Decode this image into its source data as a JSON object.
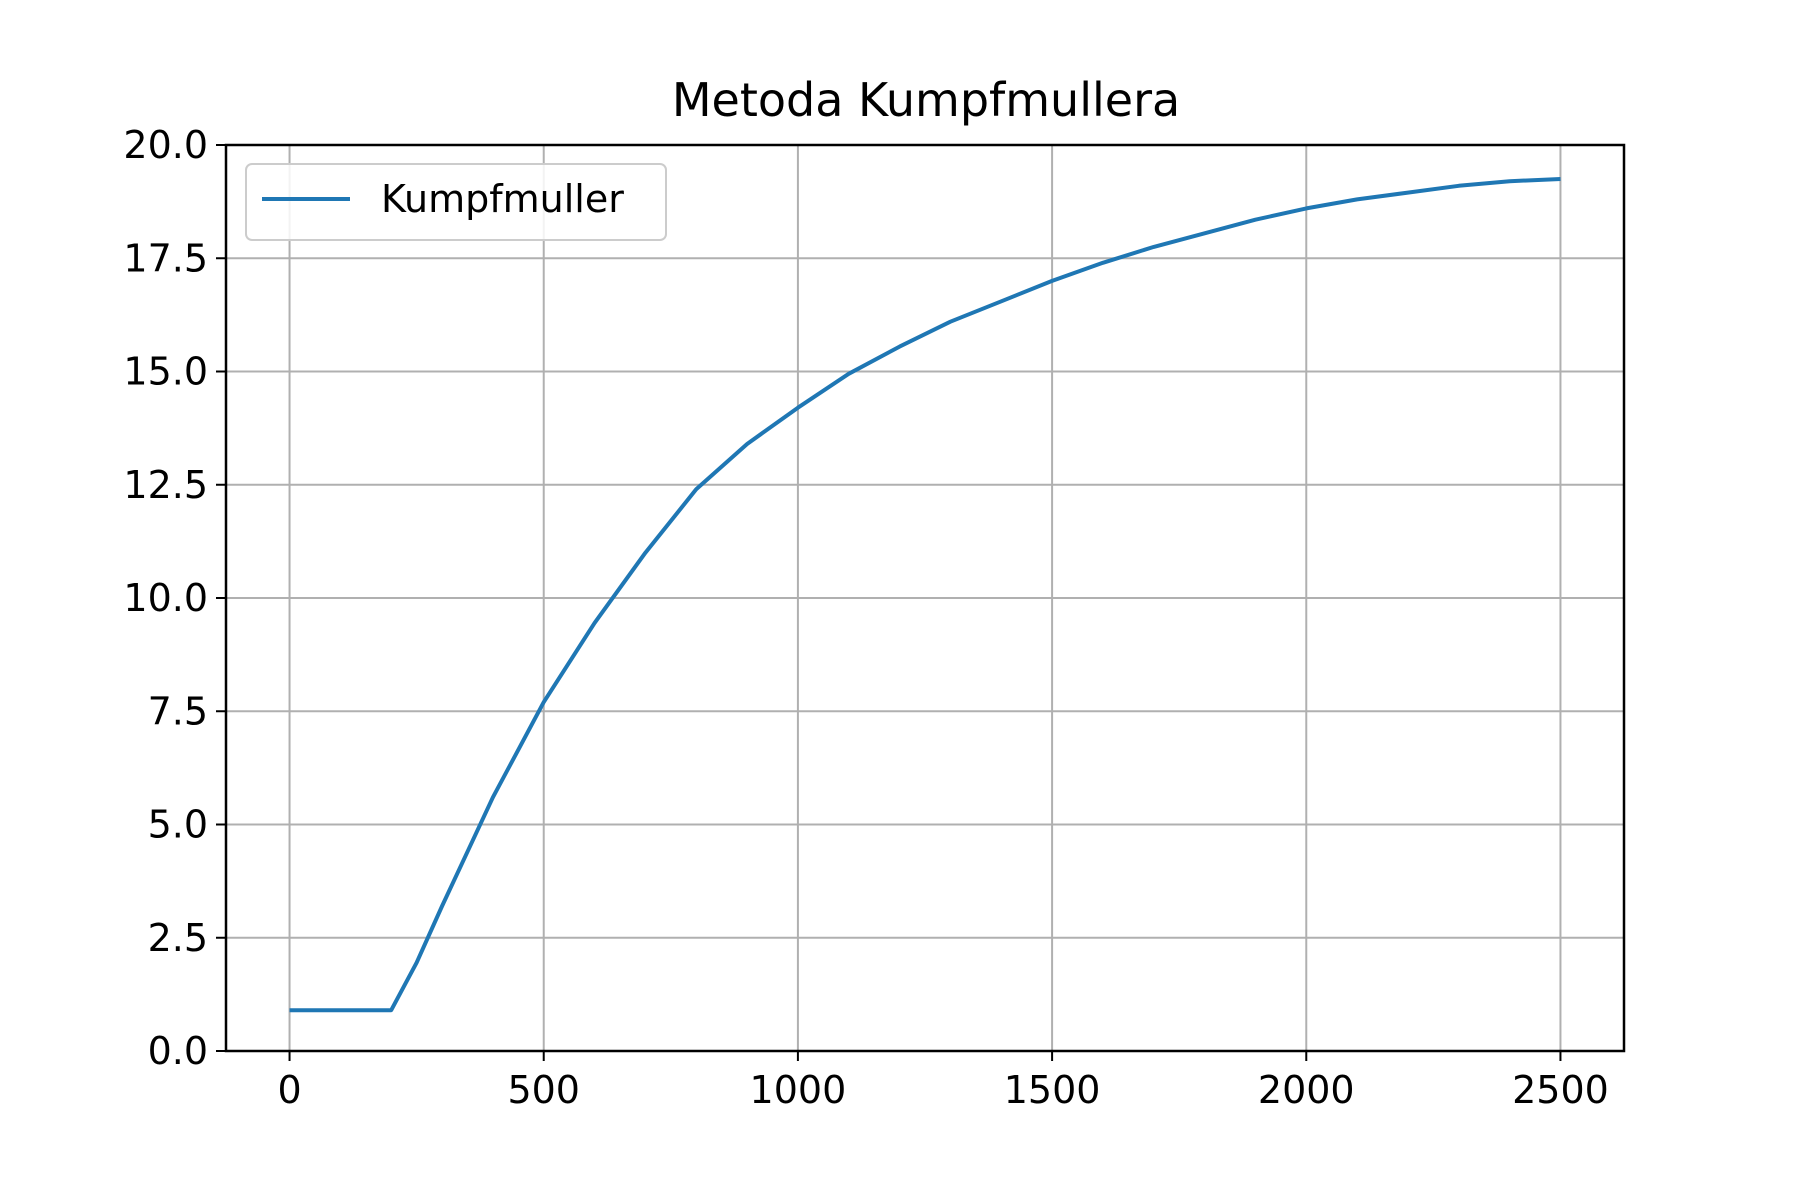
{
  "chart_data": {
    "type": "line",
    "title": "Metoda Kumpfmullera",
    "xlabel": "",
    "ylabel": "",
    "xlim": [
      -125,
      2625
    ],
    "ylim": [
      0,
      20
    ],
    "grid": true,
    "legend_position": "upper-left",
    "x_ticks": [
      0,
      500,
      1000,
      1500,
      2000,
      2500
    ],
    "x_tick_labels": [
      "0",
      "500",
      "1000",
      "1500",
      "2000",
      "2500"
    ],
    "y_ticks": [
      0,
      2.5,
      5,
      7.5,
      10,
      12.5,
      15,
      17.5,
      20
    ],
    "y_tick_labels": [
      "0.0",
      "2.5",
      "5.0",
      "7.5",
      "10.0",
      "12.5",
      "15.0",
      "17.5",
      "20.0"
    ],
    "series": [
      {
        "name": "Kumpfmuller",
        "color": "#1f77b4",
        "x": [
          0,
          100,
          200,
          250,
          300,
          350,
          400,
          450,
          500,
          600,
          700,
          800,
          900,
          1000,
          1100,
          1200,
          1300,
          1400,
          1500,
          1600,
          1700,
          1800,
          1900,
          2000,
          2100,
          2200,
          2300,
          2400,
          2500
        ],
        "y": [
          0.9,
          0.9,
          0.9,
          1.95,
          3.2,
          4.4,
          5.6,
          6.65,
          7.7,
          9.45,
          11.0,
          12.4,
          13.4,
          14.2,
          14.95,
          15.55,
          16.1,
          16.55,
          17.0,
          17.4,
          17.75,
          18.05,
          18.35,
          18.6,
          18.8,
          18.95,
          19.1,
          19.2,
          19.25
        ]
      }
    ]
  }
}
